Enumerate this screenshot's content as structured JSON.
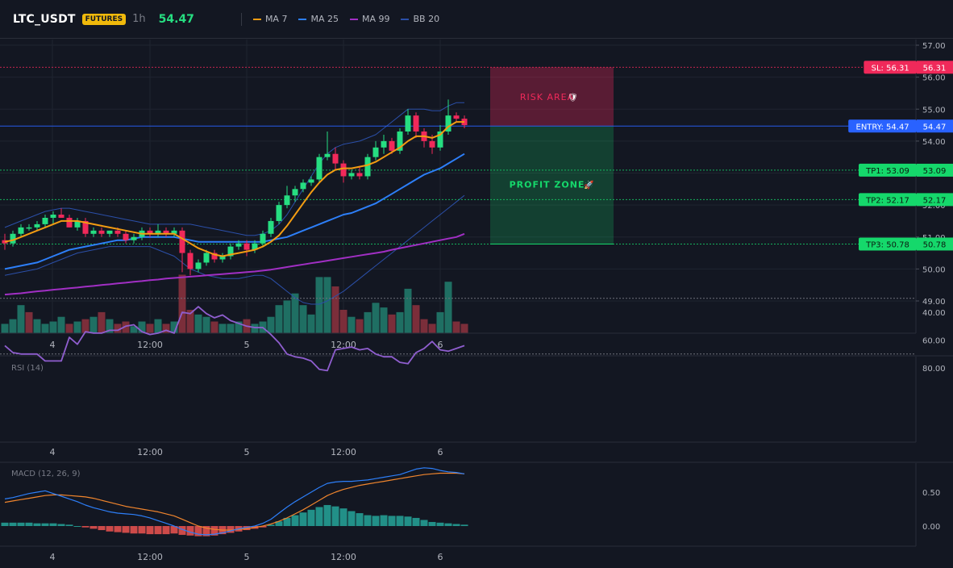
{
  "header": {
    "symbol": "LTC_USDT",
    "badge": "FUTURES",
    "interval": "1h",
    "price": "54.47",
    "legend": [
      {
        "label": "MA 7",
        "color": "#f39c12"
      },
      {
        "label": "MA 25",
        "color": "#2d7ff9"
      },
      {
        "label": "MA 99",
        "color": "#a12fc4"
      },
      {
        "label": "BB 20",
        "color": "#2b4fa8"
      }
    ]
  },
  "levels": [
    {
      "label": "SL: 56.31",
      "value_label": "56.31",
      "price": 56.31,
      "color": "#f0295a",
      "text_color": "#ffffff"
    },
    {
      "label": "ENTRY: 54.47",
      "value_label": "54.47",
      "price": 54.47,
      "color": "#2962ff",
      "text_color": "#ffffff"
    },
    {
      "label": "TP1: 53.09",
      "value_label": "53.09",
      "price": 53.09,
      "color": "#15d86b",
      "text_color": "#0b1a10"
    },
    {
      "label": "TP2: 52.17",
      "value_label": "52.17",
      "price": 52.17,
      "color": "#15d86b",
      "text_color": "#0b1a10"
    },
    {
      "label": "TP3: 50.78",
      "value_label": "50.78",
      "price": 50.78,
      "color": "#15d86b",
      "text_color": "#0b1a10"
    }
  ],
  "zones": {
    "risk_label": "RISK AREA",
    "profit_label": "PROFIT ZONE",
    "risk_color": "#f0295a",
    "profit_color": "#15d86b"
  },
  "x_axis": {
    "labels": [
      {
        "label": "4",
        "index": 6
      },
      {
        "label": "12:00",
        "index": 18
      },
      {
        "label": "5",
        "index": 30
      },
      {
        "label": "12:00",
        "index": 42
      },
      {
        "label": "6",
        "index": 54
      }
    ]
  },
  "chart_data": [
    {
      "type": "candlestick",
      "title": "LTC_USDT",
      "ylim": [
        48.0,
        57.2
      ],
      "y_ticks": [
        "57.00",
        "56.00",
        "55.00",
        "54.00",
        "53.00",
        "52.00",
        "51.00",
        "50.00",
        "49.00"
      ],
      "y_tick_values": [
        57,
        56,
        55,
        54,
        53,
        52,
        51,
        50,
        49
      ],
      "candles": [
        {
          "o": 50.9,
          "h": 51.1,
          "l": 50.6,
          "c": 50.8
        },
        {
          "o": 50.8,
          "h": 51.2,
          "l": 50.7,
          "c": 51.1
        },
        {
          "o": 51.1,
          "h": 51.4,
          "l": 51.0,
          "c": 51.3
        },
        {
          "o": 51.3,
          "h": 51.4,
          "l": 51.2,
          "c": 51.3
        },
        {
          "o": 51.3,
          "h": 51.5,
          "l": 51.2,
          "c": 51.4
        },
        {
          "o": 51.4,
          "h": 51.7,
          "l": 51.3,
          "c": 51.6
        },
        {
          "o": 51.6,
          "h": 51.8,
          "l": 51.4,
          "c": 51.7
        },
        {
          "o": 51.7,
          "h": 51.9,
          "l": 51.6,
          "c": 51.6
        },
        {
          "o": 51.6,
          "h": 51.7,
          "l": 51.3,
          "c": 51.3
        },
        {
          "o": 51.3,
          "h": 51.6,
          "l": 51.2,
          "c": 51.5
        },
        {
          "o": 51.5,
          "h": 51.6,
          "l": 51.0,
          "c": 51.1
        },
        {
          "o": 51.1,
          "h": 51.3,
          "l": 51.0,
          "c": 51.2
        },
        {
          "o": 51.2,
          "h": 51.3,
          "l": 51.0,
          "c": 51.1
        },
        {
          "o": 51.1,
          "h": 51.2,
          "l": 51.0,
          "c": 51.2
        },
        {
          "o": 51.2,
          "h": 51.3,
          "l": 51.0,
          "c": 51.1
        },
        {
          "o": 51.1,
          "h": 51.2,
          "l": 50.8,
          "c": 50.9
        },
        {
          "o": 50.9,
          "h": 51.1,
          "l": 50.8,
          "c": 51.0
        },
        {
          "o": 51.0,
          "h": 51.3,
          "l": 50.9,
          "c": 51.2
        },
        {
          "o": 51.2,
          "h": 51.3,
          "l": 51.0,
          "c": 51.1
        },
        {
          "o": 51.1,
          "h": 51.4,
          "l": 51.0,
          "c": 51.2
        },
        {
          "o": 51.2,
          "h": 51.3,
          "l": 51.0,
          "c": 51.1
        },
        {
          "o": 51.1,
          "h": 51.3,
          "l": 51.0,
          "c": 51.2
        },
        {
          "o": 51.2,
          "h": 51.3,
          "l": 49.9,
          "c": 50.5
        },
        {
          "o": 50.5,
          "h": 50.6,
          "l": 49.8,
          "c": 50.0
        },
        {
          "o": 50.0,
          "h": 50.3,
          "l": 49.9,
          "c": 50.2
        },
        {
          "o": 50.2,
          "h": 50.6,
          "l": 50.1,
          "c": 50.5
        },
        {
          "o": 50.5,
          "h": 50.6,
          "l": 50.2,
          "c": 50.3
        },
        {
          "o": 50.3,
          "h": 50.5,
          "l": 50.2,
          "c": 50.4
        },
        {
          "o": 50.4,
          "h": 50.8,
          "l": 50.3,
          "c": 50.7
        },
        {
          "o": 50.7,
          "h": 50.9,
          "l": 50.6,
          "c": 50.8
        },
        {
          "o": 50.8,
          "h": 50.9,
          "l": 50.4,
          "c": 50.6
        },
        {
          "o": 50.6,
          "h": 50.9,
          "l": 50.5,
          "c": 50.8
        },
        {
          "o": 50.8,
          "h": 51.2,
          "l": 50.7,
          "c": 51.1
        },
        {
          "o": 51.1,
          "h": 51.6,
          "l": 51.0,
          "c": 51.5
        },
        {
          "o": 51.5,
          "h": 52.1,
          "l": 51.4,
          "c": 52.0
        },
        {
          "o": 52.0,
          "h": 52.6,
          "l": 51.9,
          "c": 52.3
        },
        {
          "o": 52.3,
          "h": 52.6,
          "l": 52.1,
          "c": 52.5
        },
        {
          "o": 52.5,
          "h": 52.8,
          "l": 52.4,
          "c": 52.7
        },
        {
          "o": 52.7,
          "h": 52.9,
          "l": 52.6,
          "c": 52.8
        },
        {
          "o": 52.8,
          "h": 53.6,
          "l": 52.7,
          "c": 53.5
        },
        {
          "o": 53.5,
          "h": 54.3,
          "l": 53.4,
          "c": 53.6
        },
        {
          "o": 53.6,
          "h": 53.8,
          "l": 53.1,
          "c": 53.3
        },
        {
          "o": 53.3,
          "h": 53.4,
          "l": 52.7,
          "c": 52.9
        },
        {
          "o": 52.9,
          "h": 53.1,
          "l": 52.8,
          "c": 53.0
        },
        {
          "o": 53.0,
          "h": 53.2,
          "l": 52.8,
          "c": 52.9
        },
        {
          "o": 52.9,
          "h": 53.6,
          "l": 52.8,
          "c": 53.5
        },
        {
          "o": 53.5,
          "h": 54.0,
          "l": 53.4,
          "c": 53.8
        },
        {
          "o": 53.8,
          "h": 54.2,
          "l": 53.6,
          "c": 54.0
        },
        {
          "o": 54.0,
          "h": 54.1,
          "l": 53.6,
          "c": 53.7
        },
        {
          "o": 53.7,
          "h": 54.4,
          "l": 53.6,
          "c": 54.3
        },
        {
          "o": 54.3,
          "h": 55.0,
          "l": 54.2,
          "c": 54.8
        },
        {
          "o": 54.8,
          "h": 54.9,
          "l": 54.1,
          "c": 54.3
        },
        {
          "o": 54.3,
          "h": 54.4,
          "l": 53.8,
          "c": 54.0
        },
        {
          "o": 54.0,
          "h": 54.2,
          "l": 53.6,
          "c": 53.8
        },
        {
          "o": 53.8,
          "h": 54.5,
          "l": 53.7,
          "c": 54.3
        },
        {
          "o": 54.3,
          "h": 55.3,
          "l": 54.2,
          "c": 54.8
        },
        {
          "o": 54.8,
          "h": 54.9,
          "l": 54.6,
          "c": 54.7
        },
        {
          "o": 54.7,
          "h": 54.8,
          "l": 54.4,
          "c": 54.5
        }
      ],
      "ma7": [
        50.85,
        50.9,
        51.0,
        51.1,
        51.2,
        51.3,
        51.4,
        51.5,
        51.5,
        51.5,
        51.45,
        51.4,
        51.35,
        51.3,
        51.25,
        51.2,
        51.15,
        51.1,
        51.1,
        51.1,
        51.1,
        51.1,
        50.95,
        50.8,
        50.65,
        50.55,
        50.45,
        50.4,
        50.45,
        50.5,
        50.55,
        50.6,
        50.7,
        50.85,
        51.05,
        51.35,
        51.7,
        52.05,
        52.4,
        52.7,
        52.95,
        53.1,
        53.15,
        53.15,
        53.2,
        53.25,
        53.35,
        53.5,
        53.65,
        53.8,
        54.0,
        54.15,
        54.15,
        54.1,
        54.2,
        54.45,
        54.6,
        54.6
      ],
      "ma25": [
        50.0,
        50.05,
        50.1,
        50.15,
        50.2,
        50.3,
        50.4,
        50.5,
        50.6,
        50.65,
        50.7,
        50.75,
        50.8,
        50.85,
        50.9,
        50.9,
        50.95,
        51.0,
        51.0,
        51.0,
        51.0,
        51.0,
        50.95,
        50.9,
        50.85,
        50.85,
        50.85,
        50.85,
        50.85,
        50.85,
        50.85,
        50.85,
        50.85,
        50.9,
        50.95,
        51.0,
        51.1,
        51.2,
        51.3,
        51.4,
        51.5,
        51.6,
        51.7,
        51.75,
        51.85,
        51.95,
        52.05,
        52.2,
        52.35,
        52.5,
        52.65,
        52.8,
        52.95,
        53.05,
        53.15,
        53.3,
        53.45,
        53.6
      ],
      "ma99": [
        49.2,
        49.22,
        49.24,
        49.27,
        49.3,
        49.32,
        49.35,
        49.37,
        49.4,
        49.42,
        49.45,
        49.47,
        49.5,
        49.52,
        49.55,
        49.57,
        49.6,
        49.62,
        49.65,
        49.67,
        49.7,
        49.72,
        49.74,
        49.76,
        49.78,
        49.8,
        49.82,
        49.84,
        49.86,
        49.88,
        49.9,
        49.92,
        49.95,
        49.98,
        50.02,
        50.06,
        50.1,
        50.14,
        50.18,
        50.22,
        50.26,
        50.3,
        50.34,
        50.38,
        50.42,
        50.46,
        50.5,
        50.54,
        50.6,
        50.65,
        50.7,
        50.75,
        50.8,
        50.85,
        50.9,
        50.95,
        51.0,
        51.1
      ],
      "bb_upper": [
        51.3,
        51.4,
        51.5,
        51.6,
        51.7,
        51.8,
        51.85,
        51.9,
        51.9,
        51.85,
        51.8,
        51.75,
        51.7,
        51.65,
        51.6,
        51.55,
        51.5,
        51.45,
        51.4,
        51.4,
        51.4,
        51.4,
        51.4,
        51.4,
        51.35,
        51.3,
        51.25,
        51.2,
        51.15,
        51.1,
        51.05,
        51.05,
        51.1,
        51.2,
        51.4,
        51.7,
        52.1,
        52.5,
        52.9,
        53.3,
        53.6,
        53.8,
        53.9,
        53.95,
        54.0,
        54.1,
        54.2,
        54.4,
        54.6,
        54.8,
        55.0,
        55.0,
        55.0,
        54.95,
        54.95,
        55.1,
        55.2,
        55.2
      ],
      "bb_lower": [
        49.8,
        49.85,
        49.9,
        49.95,
        50.0,
        50.1,
        50.2,
        50.3,
        50.4,
        50.5,
        50.55,
        50.6,
        50.65,
        50.7,
        50.7,
        50.7,
        50.7,
        50.7,
        50.7,
        50.6,
        50.5,
        50.4,
        50.2,
        50.0,
        49.9,
        49.8,
        49.75,
        49.7,
        49.7,
        49.7,
        49.75,
        49.8,
        49.8,
        49.7,
        49.5,
        49.3,
        49.1,
        48.95,
        48.9,
        48.9,
        49.0,
        49.15,
        49.3,
        49.5,
        49.7,
        49.9,
        50.1,
        50.3,
        50.5,
        50.7,
        50.9,
        51.1,
        51.3,
        51.5,
        51.7,
        51.9,
        52.1,
        52.3
      ],
      "volume": [
        4,
        6,
        12,
        9,
        6,
        4,
        5,
        7,
        4,
        5,
        6,
        7,
        9,
        6,
        4,
        5,
        3,
        5,
        4,
        6,
        4,
        5,
        25,
        10,
        8,
        7,
        5,
        4,
        4,
        5,
        6,
        4,
        5,
        7,
        12,
        14,
        17,
        12,
        8,
        24,
        24,
        20,
        10,
        7,
        6,
        9,
        13,
        11,
        8,
        9,
        19,
        12,
        6,
        4,
        9,
        22,
        5,
        4
      ],
      "volume_up": [
        true,
        true,
        true,
        false,
        true,
        true,
        true,
        true,
        false,
        true,
        false,
        true,
        false,
        true,
        false,
        false,
        true,
        true,
        false,
        true,
        false,
        true,
        false,
        false,
        true,
        true,
        false,
        true,
        true,
        true,
        false,
        true,
        true,
        true,
        true,
        true,
        true,
        true,
        true,
        true,
        true,
        false,
        false,
        true,
        false,
        true,
        true,
        true,
        false,
        true,
        true,
        false,
        false,
        false,
        true,
        true,
        false,
        false
      ],
      "series": [
        {
          "name": "MA 7"
        },
        {
          "name": "MA 25"
        },
        {
          "name": "MA 99"
        },
        {
          "name": "BB 20"
        }
      ]
    },
    {
      "type": "line",
      "title": "RSI (14)",
      "ylim": [
        27,
        86
      ],
      "y_ticks": [
        "80.00",
        "60.00",
        "40.00"
      ],
      "y_tick_values": [
        80,
        60,
        40
      ],
      "guide_lines": [
        70,
        30
      ],
      "values": [
        64,
        69,
        70,
        70,
        70,
        75,
        75,
        75,
        58,
        63,
        54,
        55,
        55,
        53,
        53,
        50,
        49,
        54,
        56,
        55,
        53,
        55,
        40,
        41,
        36,
        41,
        44,
        42,
        46,
        48,
        50,
        51,
        51,
        56,
        62,
        70,
        72,
        73,
        75,
        81,
        82,
        67,
        66,
        65,
        67,
        66,
        70,
        72,
        72,
        76,
        77,
        69,
        66,
        61,
        67,
        68,
        66,
        64
      ]
    },
    {
      "type": "bar",
      "title": "MACD (12, 26, 9)",
      "ylim": [
        -0.3,
        0.92
      ],
      "y_ticks": [
        "0.50",
        "0.00"
      ],
      "y_tick_values": [
        0.5,
        0.0
      ],
      "histogram": [
        0.05,
        0.05,
        0.05,
        0.05,
        0.04,
        0.04,
        0.04,
        0.03,
        0.02,
        0.0,
        -0.02,
        -0.04,
        -0.06,
        -0.08,
        -0.09,
        -0.1,
        -0.11,
        -0.11,
        -0.12,
        -0.12,
        -0.12,
        -0.11,
        -0.13,
        -0.14,
        -0.15,
        -0.15,
        -0.14,
        -0.12,
        -0.1,
        -0.08,
        -0.06,
        -0.04,
        -0.02,
        0.02,
        0.07,
        0.12,
        0.16,
        0.2,
        0.24,
        0.28,
        0.31,
        0.29,
        0.26,
        0.22,
        0.19,
        0.16,
        0.15,
        0.16,
        0.15,
        0.15,
        0.14,
        0.12,
        0.09,
        0.06,
        0.05,
        0.04,
        0.03,
        0.02
      ],
      "macd": [
        0.4,
        0.42,
        0.45,
        0.48,
        0.5,
        0.52,
        0.48,
        0.44,
        0.4,
        0.36,
        0.31,
        0.27,
        0.24,
        0.21,
        0.19,
        0.18,
        0.17,
        0.15,
        0.12,
        0.08,
        0.04,
        0.0,
        -0.05,
        -0.09,
        -0.12,
        -0.13,
        -0.12,
        -0.1,
        -0.07,
        -0.04,
        -0.02,
        0.0,
        0.04,
        0.1,
        0.19,
        0.28,
        0.36,
        0.43,
        0.5,
        0.57,
        0.63,
        0.65,
        0.66,
        0.66,
        0.67,
        0.68,
        0.7,
        0.72,
        0.74,
        0.76,
        0.8,
        0.84,
        0.86,
        0.85,
        0.82,
        0.8,
        0.79,
        0.77
      ],
      "signal": [
        0.35,
        0.37,
        0.39,
        0.41,
        0.43,
        0.45,
        0.46,
        0.46,
        0.45,
        0.44,
        0.43,
        0.41,
        0.38,
        0.35,
        0.32,
        0.29,
        0.27,
        0.25,
        0.23,
        0.21,
        0.18,
        0.15,
        0.1,
        0.05,
        0.0,
        -0.03,
        -0.05,
        -0.06,
        -0.06,
        -0.05,
        -0.04,
        -0.02,
        0.0,
        0.03,
        0.07,
        0.12,
        0.18,
        0.24,
        0.31,
        0.38,
        0.45,
        0.5,
        0.54,
        0.57,
        0.6,
        0.62,
        0.64,
        0.66,
        0.68,
        0.7,
        0.72,
        0.74,
        0.76,
        0.77,
        0.78,
        0.78,
        0.78,
        0.77
      ]
    }
  ]
}
